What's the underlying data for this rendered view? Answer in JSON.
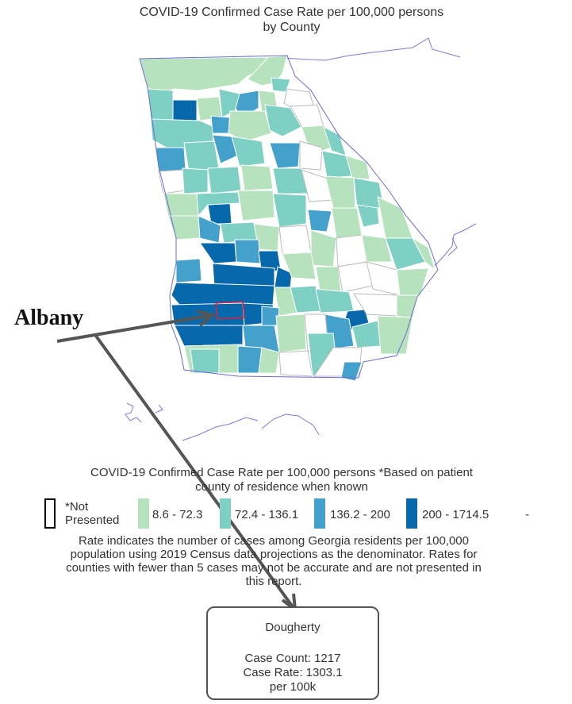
{
  "title": {
    "line1": "COVID-19 Confirmed Case Rate per 100,000 persons",
    "line2": "by County"
  },
  "legend": {
    "title_line1": "COVID-19 Confirmed Case Rate per 100,000 persons *Based on patient",
    "title_line2": "county of residence when known",
    "items": [
      {
        "label_line1": "*Not",
        "label_line2": "Presented",
        "color": "#ffffff",
        "border": "#000000"
      },
      {
        "label": "8.6 - 72.3",
        "color": "#b6e3bd"
      },
      {
        "label": "72.4 - 136.1",
        "color": "#7ecfc4"
      },
      {
        "label": "136.2 - 200",
        "color": "#43a1cb"
      },
      {
        "label": "200 - 1714.5",
        "color": "#0868ac"
      }
    ],
    "trailing_dash": "-"
  },
  "note": {
    "line1": "Rate indicates the number of cases among Georgia residents per 100,000",
    "line2": "population using 2019 Census data projections as the denominator. Rates for",
    "line3": "counties with fewer than 5 cases may not be accurate and are not presented in",
    "line4": "this report."
  },
  "callout": {
    "label": "Albany"
  },
  "tooltip": {
    "county": "Dougherty",
    "case_count": "Case Count: 1217",
    "case_rate": "Case Rate: 1303.1",
    "unit": "per 100k"
  },
  "colors": {
    "outline": "#6b6bd6",
    "highlight": "#e0203a",
    "arrow": "#555555"
  }
}
